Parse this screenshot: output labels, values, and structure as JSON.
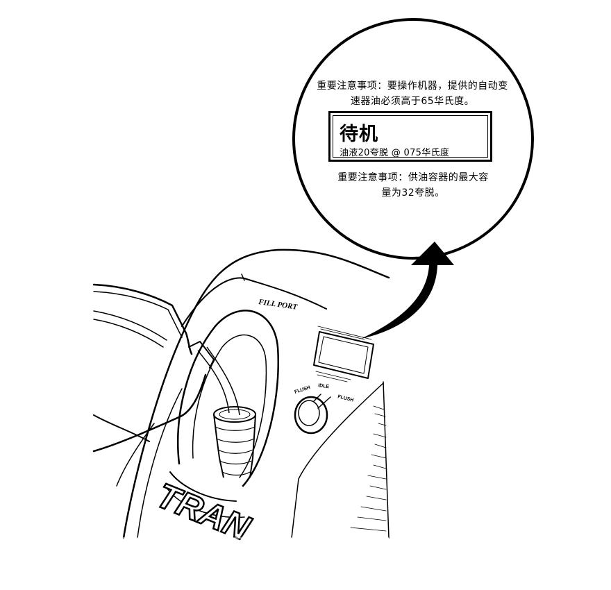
{
  "callout": {
    "note_top_line1": "重要注意事项：要操作机器，提供的自动变",
    "note_top_line2": "速器油必须高于65华氏度。",
    "display_title": "待机",
    "display_line": "油液20夸脱 @ 075华氏度",
    "note_bottom_line1": "重要注意事项：供油容器的最大容",
    "note_bottom_line2": "量为32夸脱。"
  },
  "machine": {
    "fill_port_label": "FILL PORT",
    "knob_labels": [
      "FLUSH",
      "IDLE",
      "FLUSH"
    ],
    "brand_fragment": "TRAN"
  },
  "icons": {
    "arrow": "curved-callout-arrow",
    "jug": "fluid-jug",
    "funnel": "fill-funnel",
    "knob": "selector-knob"
  }
}
